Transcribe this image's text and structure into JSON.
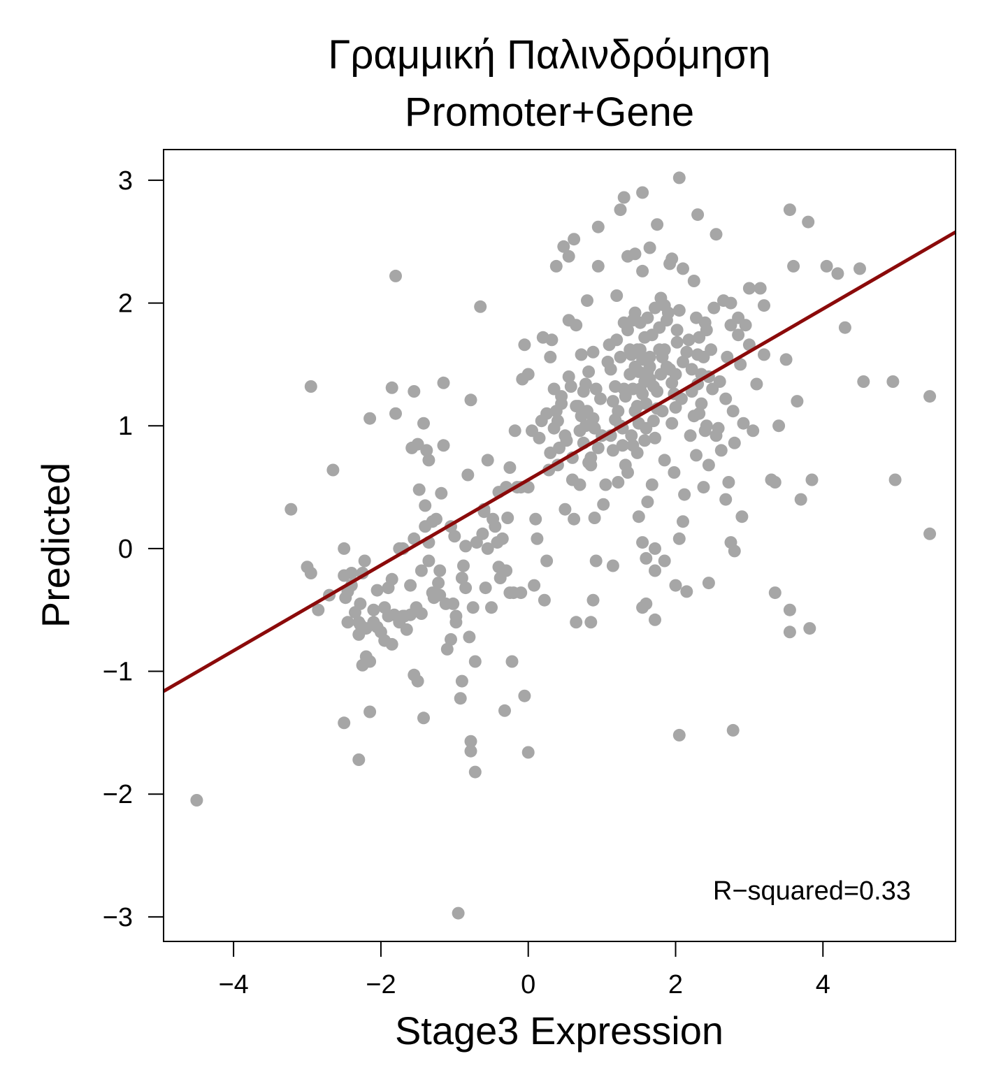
{
  "chart_data": {
    "type": "scatter",
    "title": "Γραμμική Παλινδρόμηση",
    "subtitle": "Promoter+Gene",
    "xlabel": "Stage3 Expression",
    "ylabel": "Predicted",
    "xlim": [
      -4.95,
      5.8
    ],
    "ylim": [
      -3.2,
      3.25
    ],
    "xticks": [
      -4,
      -2,
      0,
      2,
      4
    ],
    "yticks": [
      -3,
      -2,
      -1,
      0,
      1,
      2,
      3
    ],
    "xtick_labels": [
      "−4",
      "−2",
      "0",
      "2",
      "4"
    ],
    "ytick_labels": [
      "−3",
      "−2",
      "−1",
      "0",
      "1",
      "2",
      "3"
    ],
    "grid": false,
    "legend": "none",
    "point_color": "#a6a6a6",
    "line_color": "#8b0a0a",
    "annotation": "R−squared=0.33",
    "regression_line": {
      "slope": 0.348,
      "intercept": 0.56
    },
    "points": [
      [
        -4.5,
        -2.05
      ],
      [
        -3.22,
        0.32
      ],
      [
        -2.95,
        1.32
      ],
      [
        -3.0,
        -0.15
      ],
      [
        -2.95,
        -0.2
      ],
      [
        -2.85,
        -0.5
      ],
      [
        -2.7,
        -0.38
      ],
      [
        -2.65,
        0.64
      ],
      [
        -2.5,
        -0.22
      ],
      [
        -2.5,
        0.0
      ],
      [
        -2.48,
        -0.4
      ],
      [
        -2.5,
        -1.42
      ],
      [
        -2.45,
        -0.6
      ],
      [
        -2.4,
        -0.3
      ],
      [
        -2.35,
        -0.52
      ],
      [
        -2.3,
        -0.7
      ],
      [
        -2.3,
        -1.72
      ],
      [
        -2.28,
        -0.62
      ],
      [
        -2.25,
        -0.2
      ],
      [
        -2.25,
        -0.95
      ],
      [
        -2.22,
        -0.1
      ],
      [
        -2.2,
        -0.88
      ],
      [
        -2.2,
        -0.65
      ],
      [
        -2.15,
        -1.33
      ],
      [
        -2.15,
        -0.92
      ],
      [
        -2.15,
        1.06
      ],
      [
        -2.1,
        -0.6
      ],
      [
        -2.05,
        -0.34
      ],
      [
        -2.0,
        -0.68
      ],
      [
        -1.95,
        -0.75
      ],
      [
        -1.95,
        -0.48
      ],
      [
        -1.9,
        -0.32
      ],
      [
        -1.85,
        -0.25
      ],
      [
        -1.85,
        -0.78
      ],
      [
        -1.85,
        1.31
      ],
      [
        -1.82,
        -0.54
      ],
      [
        -1.8,
        1.1
      ],
      [
        -1.8,
        2.22
      ],
      [
        -1.75,
        -0.6
      ],
      [
        -1.7,
        0.0
      ],
      [
        -1.68,
        -0.55
      ],
      [
        -1.65,
        -0.66
      ],
      [
        -1.6,
        -0.54
      ],
      [
        -1.58,
        0.82
      ],
      [
        -1.55,
        1.28
      ],
      [
        -1.55,
        -1.03
      ],
      [
        -1.52,
        -0.48
      ],
      [
        -1.5,
        0.85
      ],
      [
        -1.5,
        -1.08
      ],
      [
        -1.48,
        0.48
      ],
      [
        -1.45,
        -0.18
      ],
      [
        -1.45,
        -0.53
      ],
      [
        -1.42,
        1.02
      ],
      [
        -1.42,
        -1.38
      ],
      [
        -1.4,
        0.35
      ],
      [
        -1.4,
        0.18
      ],
      [
        -1.38,
        0.8
      ],
      [
        -1.35,
        0.72
      ],
      [
        -1.35,
        0.05
      ],
      [
        -1.3,
        0.22
      ],
      [
        -1.3,
        -0.36
      ],
      [
        -1.28,
        -0.4
      ],
      [
        -1.25,
        0.24
      ],
      [
        -1.22,
        -0.28
      ],
      [
        -1.2,
        -0.18
      ],
      [
        -1.18,
        0.45
      ],
      [
        -1.15,
        0.84
      ],
      [
        -1.15,
        1.35
      ],
      [
        -1.12,
        -0.45
      ],
      [
        -1.1,
        -0.82
      ],
      [
        -1.05,
        0.18
      ],
      [
        -1.05,
        -0.74
      ],
      [
        -1.02,
        -0.45
      ],
      [
        -0.98,
        -0.6
      ],
      [
        -0.98,
        -0.55
      ],
      [
        -0.95,
        -2.97
      ],
      [
        -0.92,
        -1.22
      ],
      [
        -0.9,
        -1.08
      ],
      [
        -0.9,
        -0.24
      ],
      [
        -0.88,
        -0.14
      ],
      [
        -0.85,
        0.02
      ],
      [
        -0.82,
        0.6
      ],
      [
        -0.8,
        -0.72
      ],
      [
        -0.78,
        -1.57
      ],
      [
        -0.78,
        -1.65
      ],
      [
        -0.78,
        1.21
      ],
      [
        -0.75,
        -0.48
      ],
      [
        -0.72,
        -0.92
      ],
      [
        -0.72,
        -1.82
      ],
      [
        -0.7,
        0.05
      ],
      [
        -0.65,
        1.97
      ],
      [
        -0.62,
        0.12
      ],
      [
        -0.6,
        0.32
      ],
      [
        -0.58,
        -0.32
      ],
      [
        -0.55,
        0.72
      ],
      [
        -0.5,
        -0.48
      ],
      [
        -0.48,
        0.24
      ],
      [
        -0.45,
        0.18
      ],
      [
        -0.42,
        0.05
      ],
      [
        -0.4,
        -0.15
      ],
      [
        -0.38,
        -0.24
      ],
      [
        -0.35,
        0.08
      ],
      [
        -0.32,
        -1.32
      ],
      [
        -0.3,
        -0.18
      ],
      [
        -0.28,
        0.25
      ],
      [
        -0.25,
        -0.36
      ],
      [
        -0.22,
        -0.92
      ],
      [
        -0.2,
        -0.36
      ],
      [
        -0.18,
        0.96
      ],
      [
        -0.15,
        0.5
      ],
      [
        -0.1,
        0.5
      ],
      [
        -0.1,
        -0.36
      ],
      [
        -0.08,
        1.38
      ],
      [
        -0.05,
        -1.2
      ],
      [
        -0.05,
        1.66
      ],
      [
        -0.0,
        -1.66
      ],
      [
        -0.0,
        0.5
      ],
      [
        0.0,
        1.42
      ],
      [
        0.05,
        0.96
      ],
      [
        0.08,
        -0.3
      ],
      [
        0.1,
        0.24
      ],
      [
        0.12,
        0.08
      ],
      [
        0.15,
        0.9
      ],
      [
        0.18,
        1.04
      ],
      [
        0.2,
        1.72
      ],
      [
        0.22,
        -0.42
      ],
      [
        0.25,
        -0.1
      ],
      [
        0.28,
        0.64
      ],
      [
        0.3,
        1.56
      ],
      [
        0.32,
        1.7
      ],
      [
        0.35,
        0.98
      ],
      [
        0.38,
        1.12
      ],
      [
        0.4,
        1.04
      ],
      [
        0.42,
        0.82
      ],
      [
        0.45,
        1.24
      ],
      [
        0.48,
        2.46
      ],
      [
        0.5,
        0.32
      ],
      [
        0.52,
        0.88
      ],
      [
        0.55,
        1.86
      ],
      [
        0.58,
        1.32
      ],
      [
        0.6,
        0.56
      ],
      [
        0.62,
        0.24
      ],
      [
        0.65,
        1.82
      ],
      [
        0.68,
        1.16
      ],
      [
        0.7,
        0.52
      ],
      [
        0.72,
        1.08
      ],
      [
        0.75,
        1.28
      ],
      [
        0.78,
        1.0
      ],
      [
        0.8,
        2.02
      ],
      [
        0.82,
        0.7
      ],
      [
        0.85,
        0.68
      ],
      [
        0.88,
        1.06
      ],
      [
        0.9,
        0.25
      ],
      [
        0.92,
        -0.1
      ],
      [
        0.95,
        2.62
      ],
      [
        0.98,
        1.22
      ],
      [
        1.0,
        0.92
      ],
      [
        1.02,
        0.36
      ],
      [
        1.05,
        0.52
      ],
      [
        1.08,
        1.52
      ],
      [
        1.1,
        1.66
      ],
      [
        1.12,
        0.92
      ],
      [
        1.15,
        1.2
      ],
      [
        1.18,
        1.05
      ],
      [
        1.2,
        2.06
      ],
      [
        1.22,
        0.54
      ],
      [
        1.25,
        1.0
      ],
      [
        1.28,
        0.84
      ],
      [
        1.3,
        1.3
      ],
      [
        1.32,
        0.68
      ],
      [
        1.35,
        2.38
      ],
      [
        1.38,
        1.62
      ],
      [
        1.4,
        0.92
      ],
      [
        1.42,
        1.86
      ],
      [
        1.45,
        1.48
      ],
      [
        1.48,
        0.78
      ],
      [
        1.5,
        0.26
      ],
      [
        1.52,
        1.62
      ],
      [
        1.55,
        2.26
      ],
      [
        1.58,
        1.36
      ],
      [
        1.6,
        1.18
      ],
      [
        1.62,
        0.38
      ],
      [
        1.65,
        1.48
      ],
      [
        1.68,
        0.52
      ],
      [
        1.7,
        1.04
      ],
      [
        1.72,
        0.9
      ],
      [
        1.75,
        1.28
      ],
      [
        1.78,
        1.62
      ],
      [
        1.8,
        2.04
      ],
      [
        1.82,
        1.12
      ],
      [
        1.85,
        0.72
      ],
      [
        1.88,
        1.48
      ],
      [
        1.9,
        1.92
      ],
      [
        1.92,
        2.32
      ],
      [
        1.95,
        1.02
      ],
      [
        1.98,
        0.62
      ],
      [
        2.0,
        1.42
      ],
      [
        2.02,
        1.78
      ],
      [
        2.05,
        0.08
      ],
      [
        2.08,
        1.22
      ],
      [
        2.1,
        1.52
      ],
      [
        2.12,
        0.44
      ],
      [
        2.15,
        1.6
      ],
      [
        2.18,
        1.7
      ],
      [
        2.2,
        0.92
      ],
      [
        2.22,
        1.28
      ],
      [
        2.25,
        2.18
      ],
      [
        2.28,
        0.76
      ],
      [
        2.3,
        1.58
      ],
      [
        2.32,
        1.1
      ],
      [
        2.35,
        1.42
      ],
      [
        2.38,
        0.5
      ],
      [
        2.4,
        1.84
      ],
      [
        2.42,
        1.0
      ],
      [
        2.45,
        0.68
      ],
      [
        2.48,
        1.62
      ],
      [
        2.5,
        1.3
      ],
      [
        2.52,
        1.96
      ],
      [
        2.55,
        0.92
      ],
      [
        2.58,
        0.98
      ],
      [
        2.6,
        1.36
      ],
      [
        2.62,
        0.8
      ],
      [
        2.65,
        2.02
      ],
      [
        2.68,
        1.22
      ],
      [
        2.7,
        1.56
      ],
      [
        2.72,
        0.54
      ],
      [
        2.75,
        1.82
      ],
      [
        2.78,
        1.12
      ],
      [
        2.8,
        0.86
      ],
      [
        2.85,
        1.74
      ],
      [
        2.88,
        1.5
      ],
      [
        2.9,
        0.26
      ],
      [
        2.92,
        1.02
      ],
      [
        2.95,
        1.82
      ],
      [
        3.0,
        1.66
      ],
      [
        3.05,
        0.96
      ],
      [
        3.1,
        1.34
      ],
      [
        3.15,
        2.12
      ],
      [
        3.2,
        1.58
      ],
      [
        3.3,
        0.56
      ],
      [
        3.35,
        0.54
      ],
      [
        3.4,
        1.0
      ],
      [
        3.5,
        1.54
      ],
      [
        3.55,
        2.76
      ],
      [
        3.6,
        2.3
      ],
      [
        3.65,
        1.2
      ],
      [
        3.7,
        0.4
      ],
      [
        3.8,
        2.66
      ],
      [
        3.85,
        0.56
      ],
      [
        4.05,
        2.3
      ],
      [
        4.2,
        2.24
      ],
      [
        4.3,
        1.8
      ],
      [
        4.5,
        2.28
      ],
      [
        4.55,
        1.36
      ],
      [
        4.95,
        1.36
      ],
      [
        4.98,
        0.56
      ],
      [
        5.45,
        1.24
      ],
      [
        5.45,
        0.12
      ],
      [
        1.25,
        2.76
      ],
      [
        1.3,
        2.86
      ],
      [
        1.55,
        2.9
      ],
      [
        1.75,
        2.64
      ],
      [
        2.05,
        3.02
      ],
      [
        2.3,
        2.72
      ],
      [
        2.55,
        2.56
      ],
      [
        0.62,
        2.52
      ],
      [
        0.55,
        2.38
      ],
      [
        0.38,
        2.3
      ],
      [
        0.95,
        2.3
      ],
      [
        1.45,
        2.4
      ],
      [
        1.65,
        2.45
      ],
      [
        1.95,
        2.36
      ],
      [
        2.1,
        2.28
      ],
      [
        3.0,
        2.12
      ],
      [
        3.2,
        1.98
      ],
      [
        2.75,
        2.0
      ],
      [
        2.85,
        1.88
      ],
      [
        1.55,
        -0.48
      ],
      [
        1.6,
        -0.08
      ],
      [
        1.72,
        0.0
      ],
      [
        1.85,
        -0.1
      ],
      [
        2.0,
        -0.3
      ],
      [
        2.15,
        -0.35
      ],
      [
        2.45,
        -0.28
      ],
      [
        1.72,
        -0.58
      ],
      [
        1.55,
        0.05
      ],
      [
        1.6,
        -0.45
      ],
      [
        2.05,
        -1.52
      ],
      [
        2.78,
        -1.48
      ],
      [
        3.35,
        -0.36
      ],
      [
        3.55,
        -0.5
      ],
      [
        3.55,
        -0.68
      ],
      [
        3.82,
        -0.65
      ],
      [
        0.65,
        -0.6
      ],
      [
        0.85,
        -0.6
      ],
      [
        0.88,
        -0.42
      ],
      [
        1.15,
        -0.14
      ],
      [
        1.72,
        -0.18
      ],
      [
        2.1,
        0.22
      ],
      [
        2.68,
        0.4
      ],
      [
        2.75,
        0.05
      ],
      [
        2.8,
        -0.02
      ],
      [
        1.85,
        1.62
      ],
      [
        1.88,
        1.86
      ],
      [
        1.92,
        1.46
      ],
      [
        1.95,
        1.35
      ],
      [
        1.98,
        1.26
      ],
      [
        2.0,
        1.15
      ],
      [
        2.02,
        1.68
      ],
      [
        2.05,
        1.94
      ],
      [
        1.62,
        1.44
      ],
      [
        1.65,
        1.56
      ],
      [
        1.68,
        1.74
      ],
      [
        1.7,
        1.32
      ],
      [
        1.72,
        1.96
      ],
      [
        1.75,
        1.14
      ],
      [
        1.78,
        1.8
      ],
      [
        1.8,
        1.42
      ],
      [
        1.82,
        1.56
      ],
      [
        1.85,
        1.98
      ],
      [
        1.42,
        1.3
      ],
      [
        1.45,
        1.12
      ],
      [
        1.48,
        1.62
      ],
      [
        1.5,
        1.02
      ],
      [
        1.52,
        1.84
      ],
      [
        1.55,
        1.26
      ],
      [
        1.58,
        1.72
      ],
      [
        1.6,
        0.98
      ],
      [
        1.62,
        1.88
      ],
      [
        1.65,
        1.38
      ],
      [
        1.35,
        1.78
      ],
      [
        1.38,
        1.42
      ],
      [
        1.4,
        1.58
      ],
      [
        1.42,
        0.84
      ],
      [
        1.45,
        1.92
      ],
      [
        1.48,
        1.16
      ],
      [
        1.5,
        1.44
      ],
      [
        1.52,
        1.3
      ],
      [
        1.55,
        1.54
      ],
      [
        1.58,
        0.88
      ],
      [
        2.22,
        1.46
      ],
      [
        2.25,
        1.08
      ],
      [
        2.28,
        1.88
      ],
      [
        2.3,
        1.34
      ],
      [
        2.32,
        1.72
      ],
      [
        2.35,
        1.18
      ],
      [
        2.38,
        1.56
      ],
      [
        2.4,
        0.96
      ],
      [
        2.42,
        1.78
      ],
      [
        2.45,
        1.4
      ],
      [
        1.12,
        1.46
      ],
      [
        1.15,
        0.8
      ],
      [
        1.18,
        1.32
      ],
      [
        1.2,
        1.7
      ],
      [
        1.22,
        1.12
      ],
      [
        1.25,
        1.56
      ],
      [
        1.28,
        0.98
      ],
      [
        1.3,
        1.84
      ],
      [
        1.32,
        1.24
      ],
      [
        1.35,
        0.62
      ],
      [
        0.72,
        1.58
      ],
      [
        0.75,
        0.86
      ],
      [
        0.78,
        1.34
      ],
      [
        0.8,
        1.12
      ],
      [
        0.82,
        1.44
      ],
      [
        0.85,
        0.74
      ],
      [
        0.88,
        1.6
      ],
      [
        0.9,
        0.98
      ],
      [
        0.92,
        1.3
      ],
      [
        0.95,
        0.82
      ],
      [
        0.25,
        1.1
      ],
      [
        0.3,
        0.78
      ],
      [
        0.35,
        1.3
      ],
      [
        0.4,
        0.68
      ],
      [
        0.45,
        1.18
      ],
      [
        0.5,
        0.92
      ],
      [
        0.55,
        1.4
      ],
      [
        0.6,
        0.74
      ],
      [
        0.65,
        1.16
      ],
      [
        0.7,
        0.96
      ],
      [
        -0.3,
        0.5
      ],
      [
        -0.25,
        0.66
      ],
      [
        -0.4,
        0.46
      ],
      [
        -0.6,
        0.3
      ],
      [
        -0.55,
        0.0
      ],
      [
        -0.85,
        -0.32
      ],
      [
        -1.0,
        0.1
      ],
      [
        -1.2,
        -0.38
      ],
      [
        -1.35,
        -0.1
      ],
      [
        -1.55,
        0.08
      ],
      [
        -1.7,
        -0.55
      ],
      [
        -1.9,
        -0.55
      ],
      [
        -2.05,
        -0.64
      ],
      [
        -2.1,
        -0.5
      ],
      [
        -2.3,
        -0.6
      ],
      [
        -2.28,
        -0.45
      ],
      [
        -2.4,
        -0.2
      ],
      [
        -2.45,
        -0.35
      ],
      [
        -1.6,
        -0.3
      ],
      [
        -1.75,
        0.0
      ]
    ]
  }
}
